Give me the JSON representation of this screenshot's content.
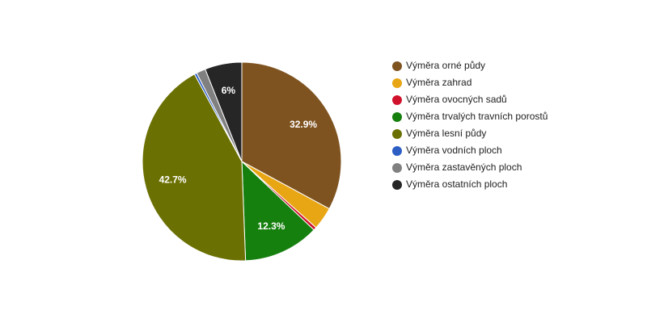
{
  "chart_data": {
    "type": "pie",
    "categories": [
      "Výměra orné půdy",
      "Výměra zahrad",
      "Výměra ovocných sadů",
      "Výměra trvalých travních porostů",
      "Výměra lesní půdy",
      "Výměra vodních ploch",
      "Výměra zastavěných ploch",
      "Výměra ostatních ploch"
    ],
    "values": [
      32.9,
      3.7,
      0.5,
      12.3,
      42.7,
      0.4,
      1.5,
      6
    ],
    "value_labels": [
      "32.9%",
      null,
      null,
      "12.3%",
      "42.7%",
      null,
      null,
      "6%"
    ],
    "colors": [
      "#7f5320",
      "#e8a614",
      "#d0112b",
      "#16800f",
      "#6b7002",
      "#2d5ec4",
      "#808080",
      "#262626"
    ],
    "legend": "right"
  }
}
